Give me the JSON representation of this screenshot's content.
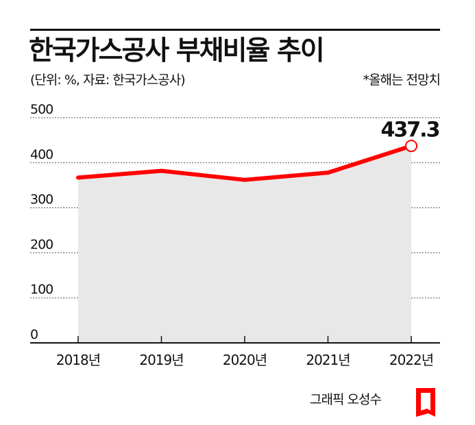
{
  "header": {
    "title": "한국가스공사 부채비율 추이",
    "subtitle": "(단위: %, 자료: 한국가스공사)",
    "note": "*올해는 전망치"
  },
  "chart_data": {
    "type": "area",
    "categories": [
      "2018년",
      "2019년",
      "2020년",
      "2021년",
      "2022년"
    ],
    "values": [
      367,
      382,
      362,
      378,
      437.3
    ],
    "yticks": [
      "0",
      "100",
      "200",
      "300",
      "400",
      "500"
    ],
    "ylim": [
      0,
      500
    ],
    "grid": true,
    "line_color": "#ff0000",
    "fill_color": "#e8e8e8",
    "highlight": {
      "index": 4,
      "label": "437.3"
    }
  },
  "footer": {
    "credit": "그래픽 오성수",
    "logo_color": "#ff0000"
  }
}
